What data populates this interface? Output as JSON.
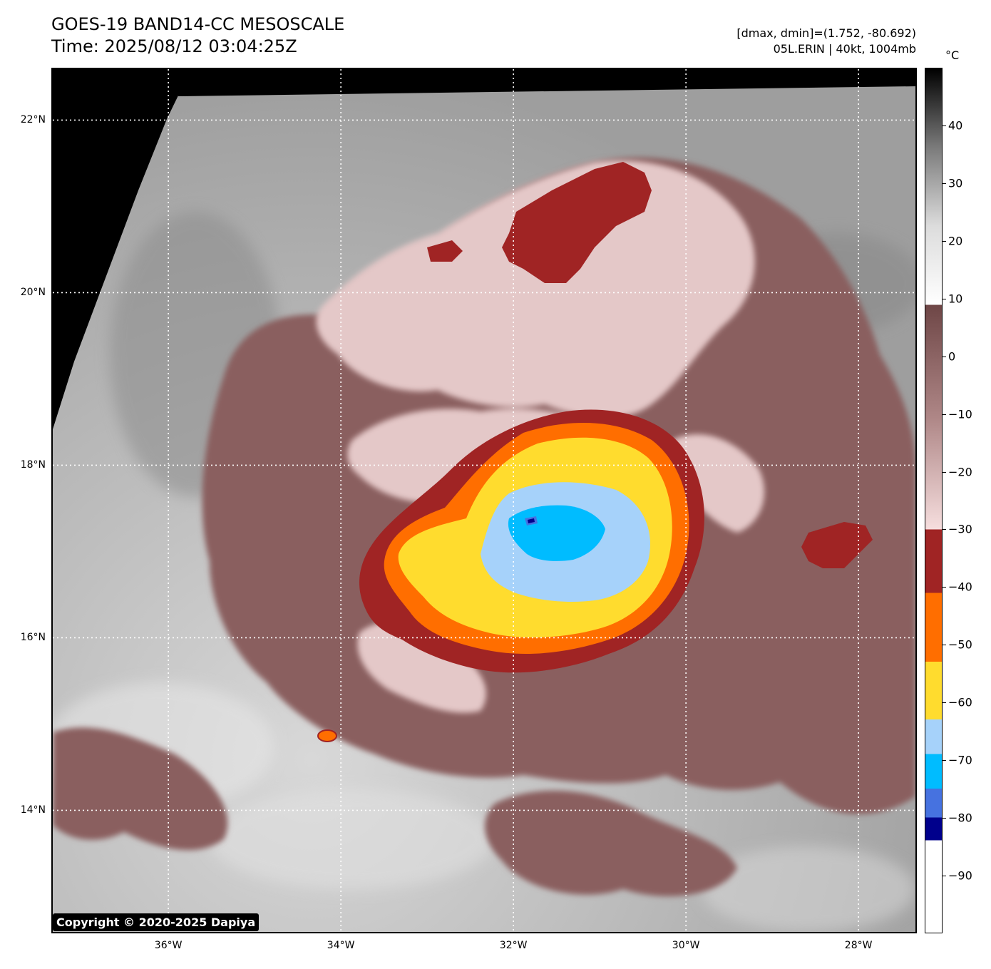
{
  "header": {
    "title_line1": "GOES-19 BAND14-CC MESOSCALE",
    "title_line2": "Time: 2025/08/12 03:04:25Z",
    "info_line1": "[dmax, dmin]=(1.752, -80.692)",
    "info_line2": "05L.ERIN | 40kt, 1004mb"
  },
  "map": {
    "lat_labels": [
      {
        "text": "22°N",
        "value": 22
      },
      {
        "text": "20°N",
        "value": 20
      },
      {
        "text": "18°N",
        "value": 18
      },
      {
        "text": "16°N",
        "value": 16
      },
      {
        "text": "14°N",
        "value": 14
      }
    ],
    "lon_labels": [
      {
        "text": "36°W",
        "value": -36
      },
      {
        "text": "34°W",
        "value": -34
      },
      {
        "text": "32°W",
        "value": -32
      },
      {
        "text": "30°W",
        "value": -30
      },
      {
        "text": "28°W",
        "value": -28
      }
    ],
    "extent": {
      "lon_min": -37.34,
      "lon_max": -27.34,
      "lat_min": 12.59,
      "lat_max": 22.59
    },
    "storm_center": {
      "lat": 17.28,
      "lon": -31.8
    },
    "colors": {
      "space": "#000000",
      "clear": "#a4a4a4",
      "warm_cloud": "#8a5e5e",
      "mid_cloud": "#e4c8c8",
      "red": "#a02424",
      "orange": "#ff6e00",
      "yellow": "#ffdc2e",
      "light_blue": "#a6d2fa",
      "cyan": "#00bcff",
      "blue": "#4672e0",
      "navy": "#00008c"
    }
  },
  "colorbar": {
    "unit": "°C",
    "vmin": -100,
    "vmax": 50,
    "ticks": [
      {
        "text": "40",
        "value": 40
      },
      {
        "text": "30",
        "value": 30
      },
      {
        "text": "20",
        "value": 20
      },
      {
        "text": "10",
        "value": 10
      },
      {
        "text": "0",
        "value": 0
      },
      {
        "text": "−10",
        "value": -10
      },
      {
        "text": "−20",
        "value": -20
      },
      {
        "text": "−30",
        "value": -30
      },
      {
        "text": "−40",
        "value": -40
      },
      {
        "text": "−50",
        "value": -50
      },
      {
        "text": "−60",
        "value": -60
      },
      {
        "text": "−70",
        "value": -70
      },
      {
        "text": "−80",
        "value": -80
      },
      {
        "text": "−90",
        "value": -90
      }
    ],
    "segments": [
      {
        "from": 9,
        "to": 50,
        "gradient": [
          "#ffffff",
          "#dcdcdc",
          "#7a7a7a",
          "#000000"
        ]
      },
      {
        "from": -30,
        "to": 9,
        "gradient": [
          "#f6dede",
          "#ae8686",
          "#6e4646"
        ]
      },
      {
        "from": -41,
        "to": -30,
        "color": "#a02424"
      },
      {
        "from": -53,
        "to": -41,
        "color": "#ff6e00"
      },
      {
        "from": -63,
        "to": -53,
        "color": "#ffdc2e"
      },
      {
        "from": -69,
        "to": -63,
        "color": "#a6d2fa"
      },
      {
        "from": -75,
        "to": -69,
        "color": "#00bcff"
      },
      {
        "from": -80,
        "to": -75,
        "color": "#4672e0"
      },
      {
        "from": -84,
        "to": -80,
        "color": "#00008c"
      },
      {
        "from": -100,
        "to": -84,
        "color": "#ffffff"
      }
    ]
  },
  "footer": {
    "copyright": "Copyright © 2020-2025 Dapiya"
  }
}
